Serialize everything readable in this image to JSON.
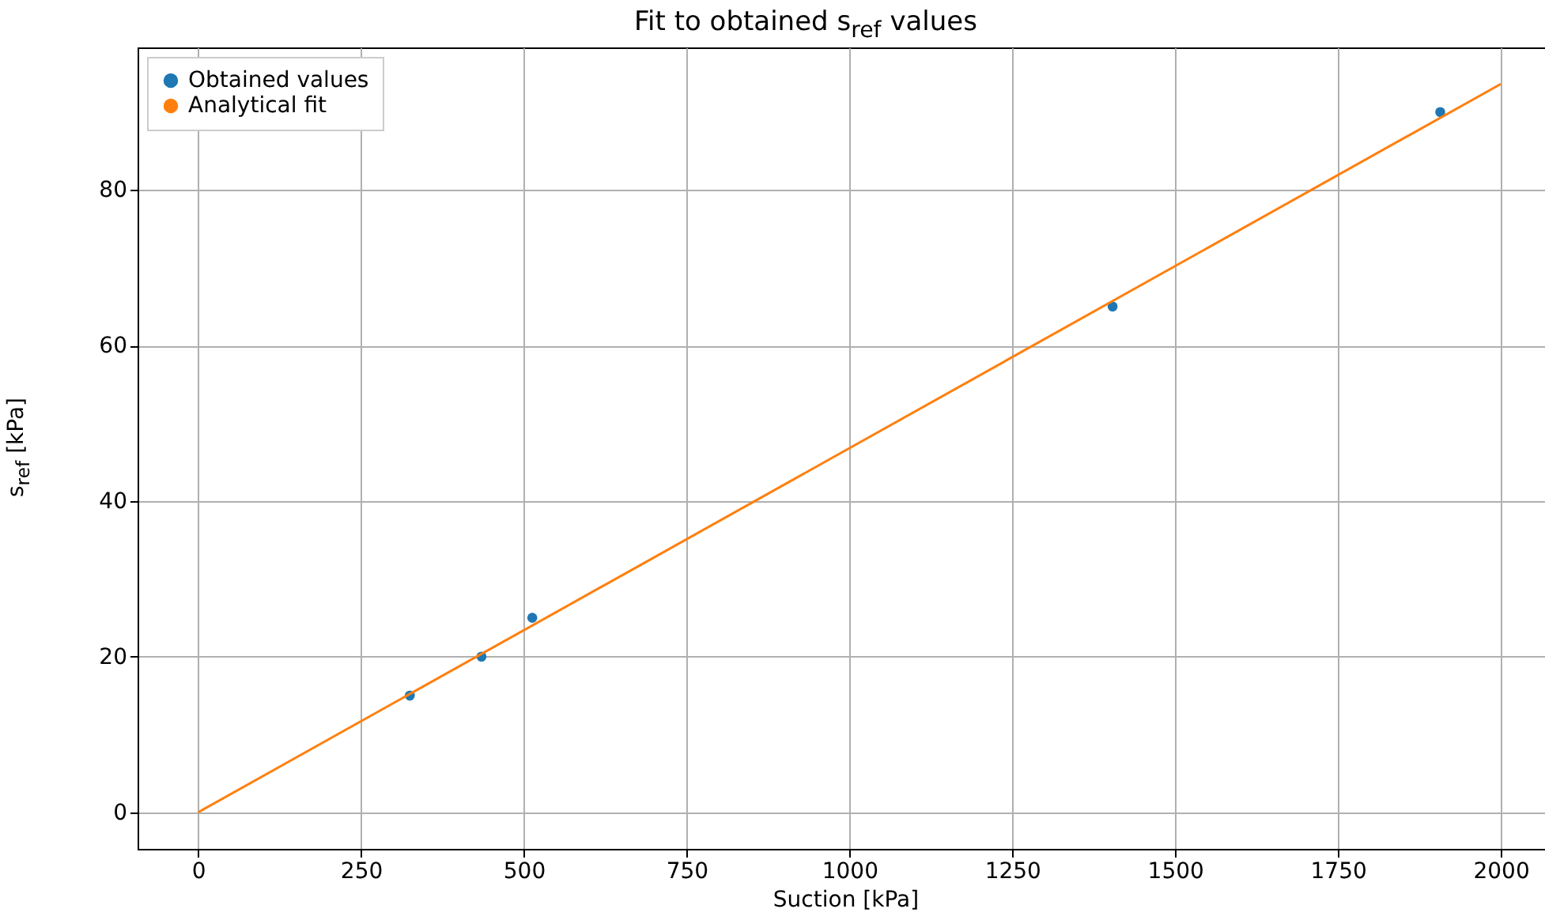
{
  "chart_data": {
    "type": "scatter",
    "title": "Fit to obtained s$_{ref}$ values",
    "xlabel": "Suction [kPa]",
    "ylabel": "s$_{ref}$ [kPa]",
    "xlim": [
      -93,
      2080
    ],
    "ylim": [
      -4.7,
      98.3
    ],
    "xticks": [
      0,
      250,
      500,
      750,
      1000,
      1250,
      1500,
      1750,
      2000
    ],
    "yticks": [
      0,
      20,
      40,
      60,
      80
    ],
    "grid": true,
    "legend": "top left",
    "series": [
      {
        "name": "Obtained values",
        "marker": "circle",
        "color": "#1f77b4",
        "x": [
          325,
          435,
          513,
          1404,
          1907
        ],
        "values": [
          15,
          20,
          25,
          65,
          90
        ]
      },
      {
        "name": "Analytical fit",
        "type": "line",
        "color": "#ff7f0e",
        "x": [
          0,
          2000
        ],
        "values": [
          0,
          93.6
        ],
        "line_style": "solid"
      }
    ]
  }
}
